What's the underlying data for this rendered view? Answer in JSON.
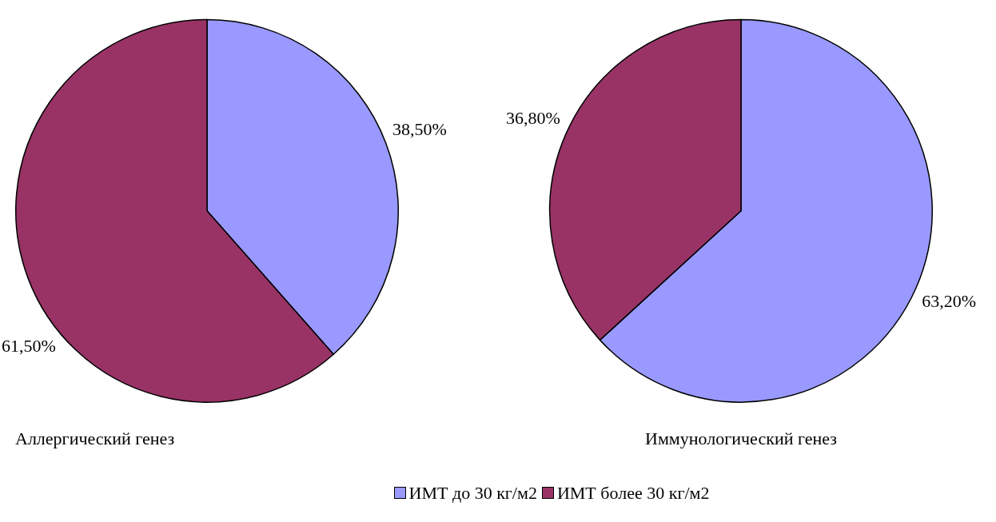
{
  "chart_data": [
    {
      "type": "pie",
      "title": "Аллергический генез",
      "categories": [
        "ИМТ до 30 кг/м2",
        "ИМТ более 30 кг/м2"
      ],
      "values": [
        38.5,
        61.5
      ],
      "colors": [
        "#9999ff",
        "#993366"
      ],
      "value_labels": [
        "38,50%",
        "61,50%"
      ],
      "legend": "bottom"
    },
    {
      "type": "pie",
      "title": "Иммунологический генез",
      "categories": [
        null,
        null
      ],
      "values": [
        63.2,
        36.8
      ],
      "colors": [
        "#9999ff",
        "#993366"
      ],
      "value_labels": [
        "63,20%",
        "36,80%"
      ]
    }
  ]
}
